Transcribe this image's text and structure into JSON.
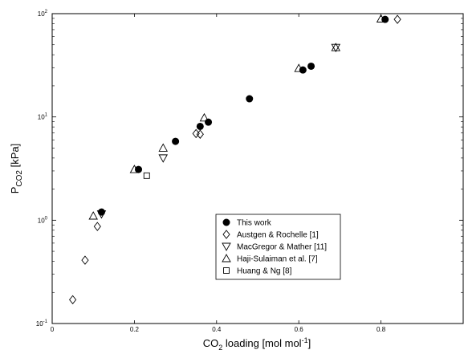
{
  "chart_data": {
    "type": "scatter",
    "title": "",
    "xlabel": {
      "pre": "CO",
      "sub": "2",
      "post": " loading [mol mol",
      "sup": "-1",
      "end": "]"
    },
    "ylabel": {
      "pre": "P",
      "sub": "CO2",
      "post": " [kPa]"
    },
    "xlim": [
      0,
      1.0
    ],
    "ylim": [
      0.1,
      100
    ],
    "yscale": "log",
    "grid": false,
    "legend_position": "lower-right",
    "x_ticks": [
      {
        "value": 0,
        "label": "0"
      },
      {
        "value": 0.2,
        "label": "0.2"
      },
      {
        "value": 0.4,
        "label": "0.4"
      },
      {
        "value": 0.6,
        "label": "0.6"
      },
      {
        "value": 0.8,
        "label": "0.8"
      }
    ],
    "y_ticks": [
      {
        "value": 0.1,
        "base": "10",
        "exp": "-1"
      },
      {
        "value": 1,
        "base": "10",
        "exp": "0"
      },
      {
        "value": 10,
        "base": "10",
        "exp": "1"
      },
      {
        "value": 100,
        "base": "10",
        "exp": "2"
      }
    ],
    "series": [
      {
        "name": "This work",
        "marker": "filled-circle",
        "x": [
          0.12,
          0.21,
          0.3,
          0.36,
          0.38,
          0.48,
          0.61,
          0.63,
          0.81
        ],
        "y": [
          1.2,
          3.1,
          5.8,
          8.1,
          8.9,
          15.0,
          28.5,
          31.0,
          88.0
        ]
      },
      {
        "name": "Austgen & Rochelle [1]",
        "marker": "diamond",
        "x": [
          0.05,
          0.08,
          0.11,
          0.35,
          0.36,
          0.84
        ],
        "y": [
          0.17,
          0.41,
          0.87,
          6.9,
          6.8,
          88.0
        ]
      },
      {
        "name": "MacGregor & Mather [11]",
        "marker": "triangle-down",
        "x": [
          0.12,
          0.27,
          0.69
        ],
        "y": [
          1.15,
          4.0,
          47.0
        ]
      },
      {
        "name": "Haji-Sulaiman et al. [7]",
        "marker": "triangle-up",
        "x": [
          0.1,
          0.2,
          0.27,
          0.37,
          0.6,
          0.69,
          0.8
        ],
        "y": [
          1.1,
          3.1,
          5.0,
          9.8,
          29.5,
          47.0,
          89.0
        ]
      },
      {
        "name": "Huang & Ng [8]",
        "marker": "square",
        "x": [
          0.23
        ],
        "y": [
          2.7
        ]
      }
    ]
  }
}
